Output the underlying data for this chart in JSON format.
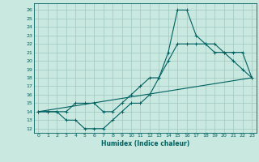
{
  "title": "",
  "xlabel": "Humidex (Indice chaleur)",
  "xlim": [
    -0.5,
    23.5
  ],
  "ylim": [
    11.5,
    26.8
  ],
  "xticks": [
    0,
    1,
    2,
    3,
    4,
    5,
    6,
    7,
    8,
    9,
    10,
    11,
    12,
    13,
    14,
    15,
    16,
    17,
    18,
    19,
    20,
    21,
    22,
    23
  ],
  "yticks": [
    12,
    13,
    14,
    15,
    16,
    17,
    18,
    19,
    20,
    21,
    22,
    23,
    24,
    25,
    26
  ],
  "bg_color": "#c8e8e0",
  "line_color": "#006060",
  "grid_color": "#a0c8c0",
  "line1_x": [
    0,
    1,
    2,
    3,
    4,
    5,
    6,
    7,
    8,
    9,
    10,
    11,
    12,
    13,
    14,
    15,
    16,
    17,
    18,
    19,
    20,
    21,
    22,
    23
  ],
  "line1_y": [
    14,
    14,
    14,
    13,
    13,
    12,
    12,
    12,
    13,
    14,
    15,
    15,
    16,
    18,
    21,
    26,
    26,
    23,
    22,
    22,
    21,
    20,
    19,
    18
  ],
  "line2_x": [
    0,
    1,
    2,
    3,
    4,
    5,
    6,
    7,
    8,
    9,
    10,
    11,
    12,
    13,
    14,
    15,
    16,
    17,
    18,
    19,
    20,
    21,
    22,
    23
  ],
  "line2_y": [
    14,
    14,
    14,
    14,
    15,
    15,
    15,
    14,
    14,
    15,
    16,
    17,
    18,
    18,
    20,
    22,
    22,
    22,
    22,
    21,
    21,
    21,
    21,
    18
  ],
  "line3_x": [
    0,
    23
  ],
  "line3_y": [
    14,
    18
  ]
}
